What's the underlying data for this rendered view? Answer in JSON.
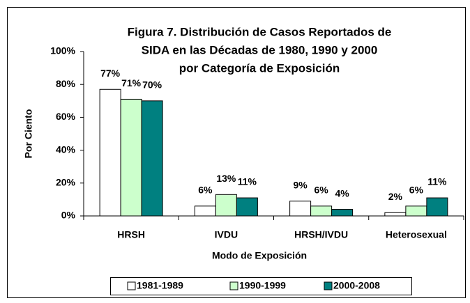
{
  "chart_data": {
    "type": "bar",
    "title": [
      "Figura 7. Distribución de Casos Reportados de",
      "SIDA en las Décadas de 1980, 1990 y 2000",
      "por Categoría de Exposición"
    ],
    "x_label": "Modo de Exposición",
    "y_label": "Por Ciento",
    "categories": [
      "HRSH",
      "IVDU",
      "HRSH/IVDU",
      "Heterosexual"
    ],
    "series": [
      {
        "name": "1981-1989",
        "color": "#ffffff",
        "values": [
          77,
          6,
          9,
          2
        ],
        "value_labels": [
          "77%",
          "6%",
          "9%",
          "2%"
        ]
      },
      {
        "name": "1990-1999",
        "color": "#ccffcc",
        "values": [
          71,
          13,
          6,
          6
        ],
        "value_labels": [
          "71%",
          "13%",
          "6%",
          "6%"
        ]
      },
      {
        "name": "2000-2008",
        "color": "#008080",
        "values": [
          70,
          11,
          4,
          11
        ],
        "value_labels": [
          "70%",
          "11%",
          "4%",
          "11%"
        ]
      }
    ],
    "ylim": [
      0,
      100
    ],
    "yticks": [
      {
        "value": 0,
        "label": "0%"
      },
      {
        "value": 20,
        "label": "20%"
      },
      {
        "value": 40,
        "label": "40%"
      },
      {
        "value": 60,
        "label": "60%"
      },
      {
        "value": 80,
        "label": "80%"
      },
      {
        "value": 100,
        "label": "100%"
      }
    ],
    "legend": "bottom"
  }
}
